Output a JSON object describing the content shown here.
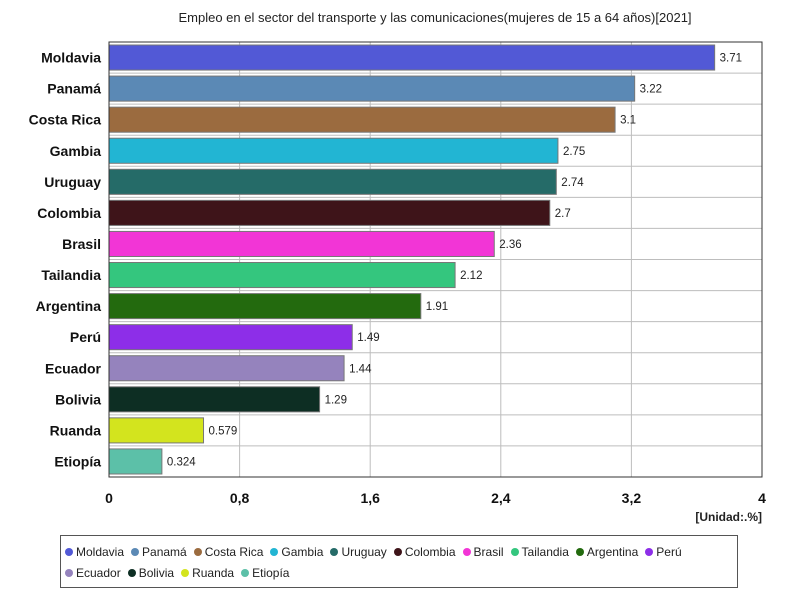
{
  "chart_data": {
    "type": "bar",
    "orientation": "horizontal",
    "title": "Empleo en el sector del transporte y las comunicaciones(mujeres de 15 a 64 años)[2021]",
    "unit": "[Unidad:.%]",
    "categories": [
      "Moldavia",
      "Panamá",
      "Costa Rica",
      "Gambia",
      "Uruguay",
      "Colombia",
      "Brasil",
      "Tailandia",
      "Argentina",
      "Perú",
      "Ecuador",
      "Bolivia",
      "Ruanda",
      "Etiopía"
    ],
    "values": [
      3.71,
      3.22,
      3.1,
      2.75,
      2.74,
      2.7,
      2.36,
      2.12,
      1.91,
      1.49,
      1.44,
      1.29,
      0.579,
      0.324
    ],
    "value_labels": [
      "3.71",
      "3.22",
      "3.1",
      "2.75",
      "2.74",
      "2.7",
      "2.36",
      "2.12",
      "1.91",
      "1.49",
      "1.44",
      "1.29",
      "0.579",
      "0.324"
    ],
    "colors": [
      "#5259d6",
      "#5b89b5",
      "#9b6b3f",
      "#22b5d3",
      "#256b68",
      "#3e1419",
      "#f235d6",
      "#34c67e",
      "#236a0e",
      "#8d2ee8",
      "#9583bd",
      "#0d2e23",
      "#d3e41e",
      "#5cc0a8"
    ],
    "xlim": [
      0,
      4
    ],
    "xticks": [
      "0",
      "0,8",
      "1,6",
      "2,4",
      "3,2",
      "4"
    ],
    "grid": true,
    "legend_position": "bottom"
  }
}
